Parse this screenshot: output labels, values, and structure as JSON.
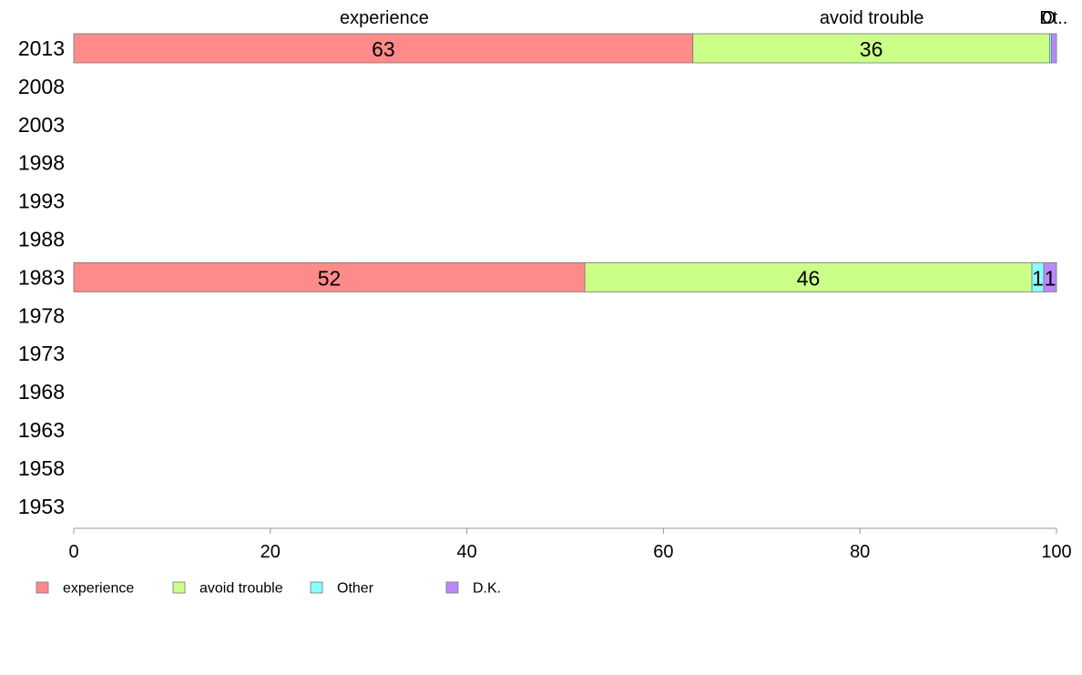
{
  "chart_data": {
    "type": "bar",
    "orientation": "horizontal",
    "stacked": true,
    "categories": [
      "2013",
      "2008",
      "2003",
      "1998",
      "1993",
      "1988",
      "1983",
      "1978",
      "1973",
      "1968",
      "1963",
      "1958",
      "1953"
    ],
    "series": [
      {
        "name": "experience",
        "color": "#ff8a8a",
        "values": [
          63,
          null,
          null,
          null,
          null,
          null,
          52,
          null,
          null,
          null,
          null,
          null,
          null
        ],
        "data_labels": [
          "63",
          null,
          null,
          null,
          null,
          null,
          "52",
          null,
          null,
          null,
          null,
          null,
          null
        ]
      },
      {
        "name": "avoid trouble",
        "color": "#ccff88",
        "values": [
          36.3,
          null,
          null,
          null,
          null,
          null,
          45.5,
          null,
          null,
          null,
          null,
          null,
          null
        ],
        "data_labels": [
          "36",
          null,
          null,
          null,
          null,
          null,
          "46",
          null,
          null,
          null,
          null,
          null,
          null
        ]
      },
      {
        "name": "Other",
        "color": "#88ffff",
        "values": [
          0.2,
          null,
          null,
          null,
          null,
          null,
          1.2,
          null,
          null,
          null,
          null,
          null,
          null
        ],
        "data_labels": [
          null,
          null,
          null,
          null,
          null,
          null,
          "1",
          null,
          null,
          null,
          null,
          null,
          null
        ]
      },
      {
        "name": "D.K.",
        "color": "#bb88ff",
        "values": [
          0.5,
          null,
          null,
          null,
          null,
          null,
          1.3,
          null,
          null,
          null,
          null,
          null,
          null
        ],
        "data_labels": [
          null,
          null,
          null,
          null,
          null,
          null,
          "1",
          null,
          null,
          null,
          null,
          null,
          null
        ]
      }
    ],
    "top_labels": [
      {
        "text": "experience",
        "value": 31.6
      },
      {
        "text": "avoid trouble",
        "value": 81.2
      },
      {
        "text": "O",
        "value": 99.2
      },
      {
        "text": "Dt..",
        "value": 99.7
      }
    ],
    "xlim": [
      0,
      100
    ],
    "xticks": [
      0,
      20,
      40,
      60,
      80,
      100
    ],
    "title": "",
    "xlabel": "",
    "ylabel": "",
    "grid": false,
    "legend_position": "bottom-left"
  }
}
